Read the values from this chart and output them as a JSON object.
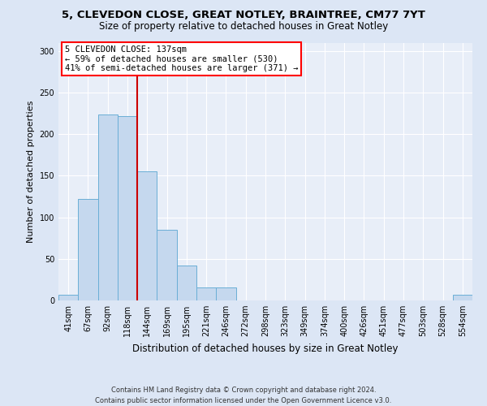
{
  "title_line1": "5, CLEVEDON CLOSE, GREAT NOTLEY, BRAINTREE, CM77 7YT",
  "title_line2": "Size of property relative to detached houses in Great Notley",
  "xlabel": "Distribution of detached houses by size in Great Notley",
  "ylabel": "Number of detached properties",
  "footnote": "Contains HM Land Registry data © Crown copyright and database right 2024.\nContains public sector information licensed under the Open Government Licence v3.0.",
  "bin_labels": [
    "41sqm",
    "67sqm",
    "92sqm",
    "118sqm",
    "144sqm",
    "169sqm",
    "195sqm",
    "221sqm",
    "246sqm",
    "272sqm",
    "298sqm",
    "323sqm",
    "349sqm",
    "374sqm",
    "400sqm",
    "426sqm",
    "451sqm",
    "477sqm",
    "503sqm",
    "528sqm",
    "554sqm"
  ],
  "bar_heights": [
    7,
    122,
    224,
    222,
    155,
    85,
    42,
    16,
    16,
    0,
    0,
    0,
    0,
    0,
    0,
    0,
    0,
    0,
    0,
    0,
    7
  ],
  "bar_color": "#c5d8ee",
  "bar_edge_color": "#6aaed6",
  "vline_color": "#cc0000",
  "annotation_box_text": "5 CLEVEDON CLOSE: 137sqm\n← 59% of detached houses are smaller (530)\n41% of semi-detached houses are larger (371) →",
  "ylim": [
    0,
    310
  ],
  "yticks": [
    0,
    50,
    100,
    150,
    200,
    250,
    300
  ],
  "background_color": "#dce6f5",
  "plot_bg_color": "#e8eef8",
  "grid_color": "#ffffff",
  "title_fontsize": 9.5,
  "subtitle_fontsize": 8.5,
  "xlabel_fontsize": 8.5,
  "ylabel_fontsize": 8,
  "tick_fontsize": 7,
  "annot_fontsize": 7.5,
  "footnote_fontsize": 6
}
